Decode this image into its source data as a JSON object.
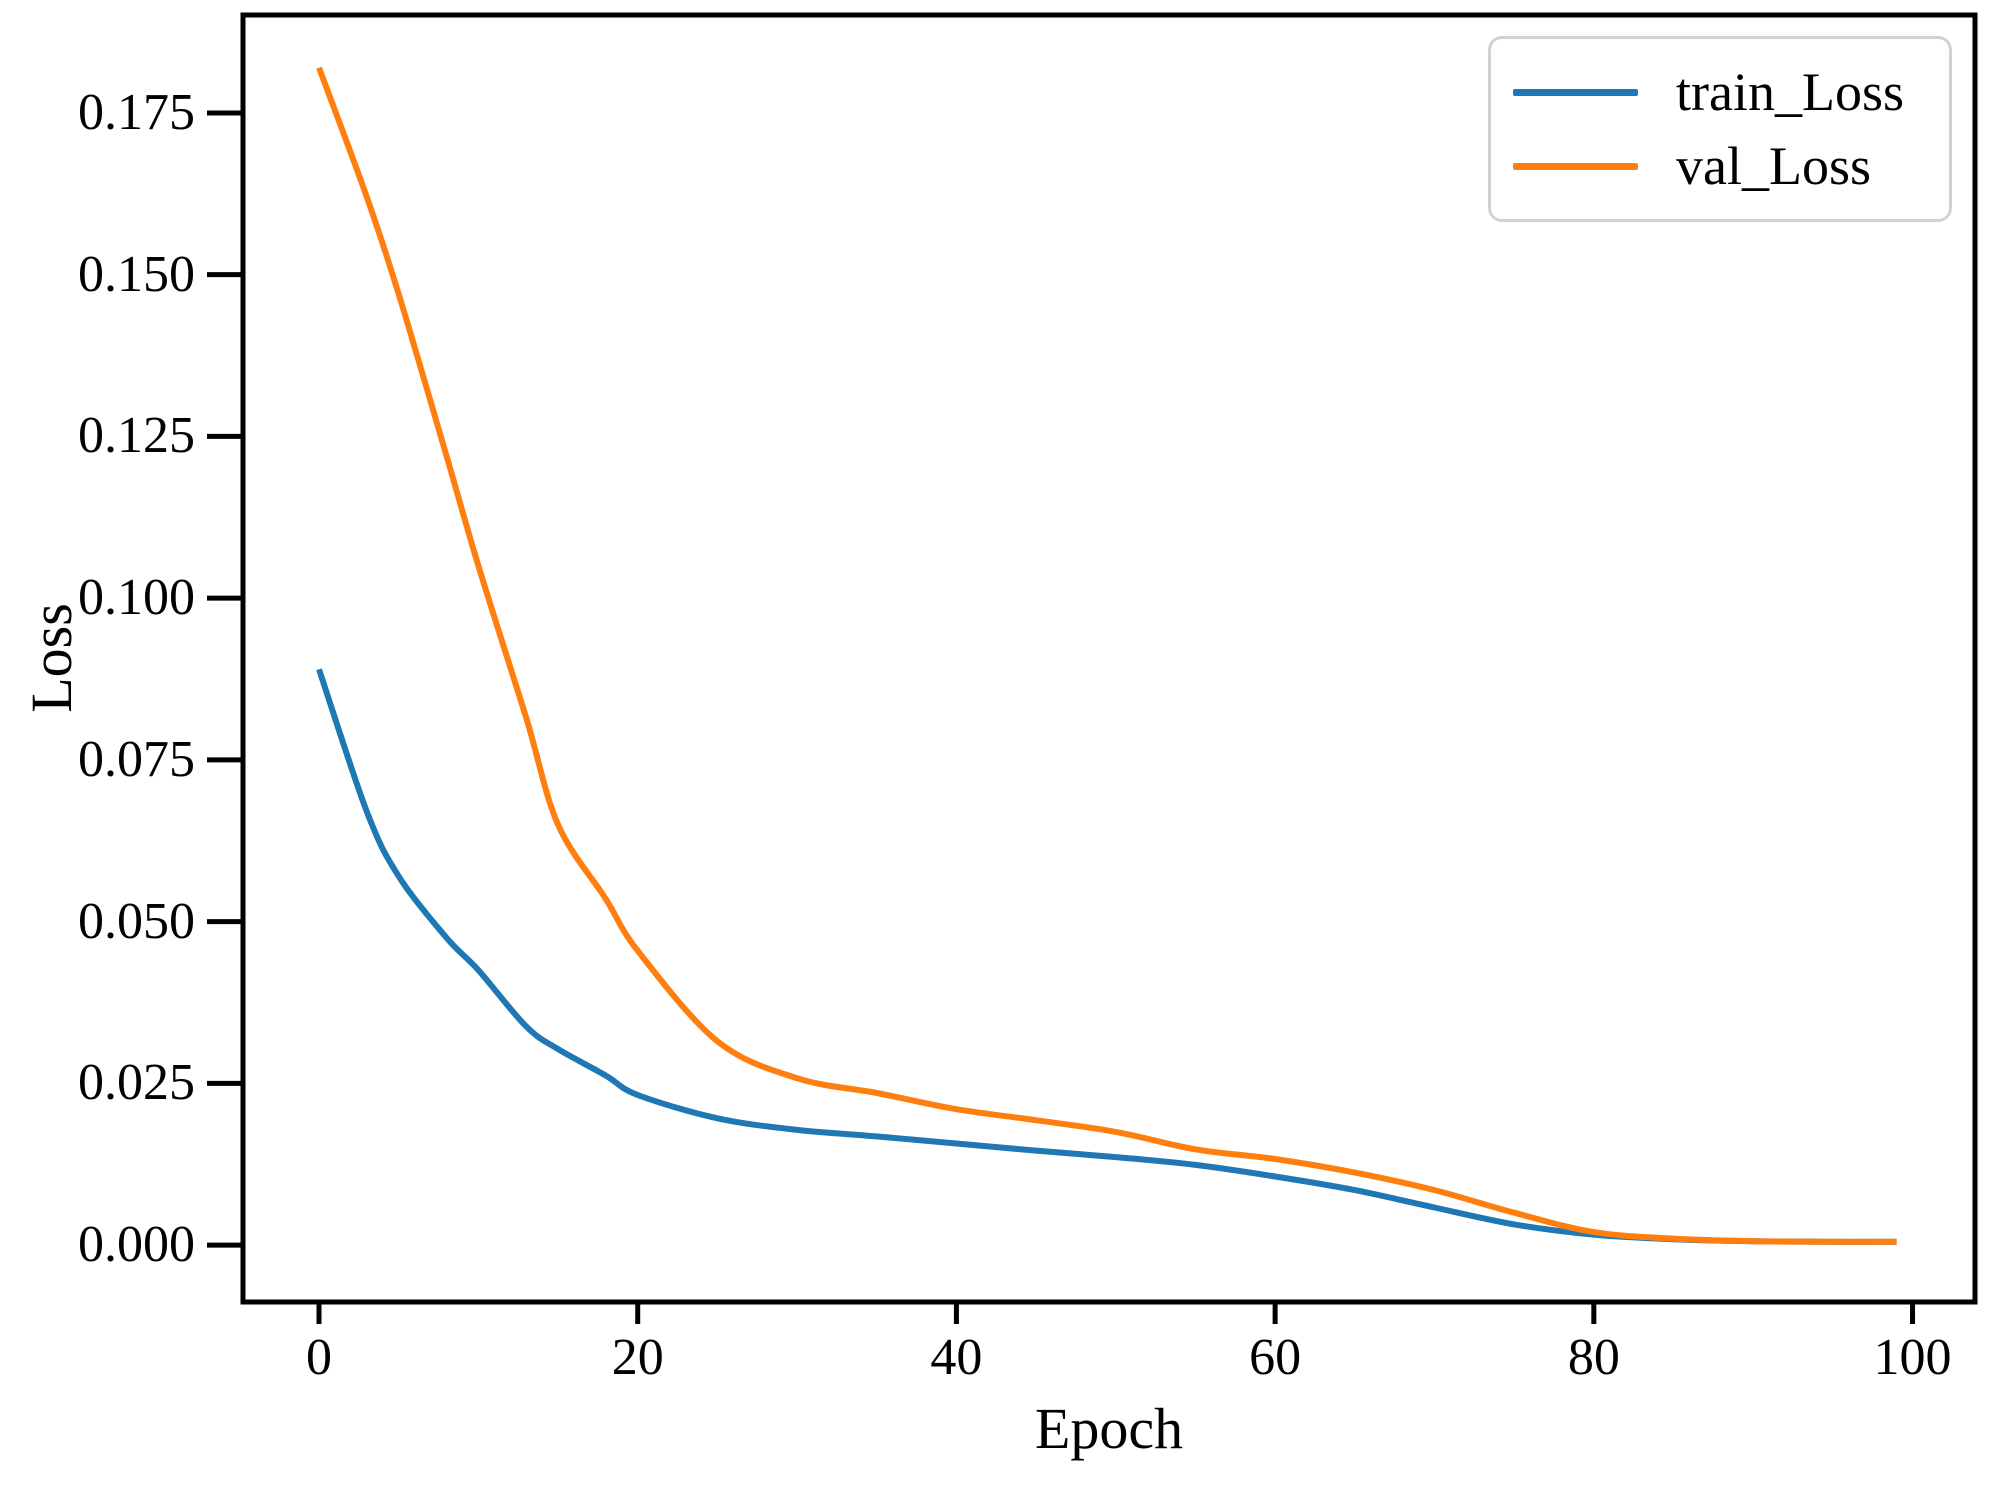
{
  "figure": {
    "background": "#ffffff",
    "spine_color": "#000000",
    "text_color": "#000000"
  },
  "chart_data": {
    "type": "line",
    "title": "",
    "xlabel": "Epoch",
    "ylabel": "Loss",
    "grid": false,
    "xlim": [
      -4.77,
      103.92
    ],
    "ylim": [
      -0.0088,
      0.19014
    ],
    "x_ticks": {
      "values": [
        0,
        20,
        40,
        60,
        80,
        100
      ],
      "labels": [
        "0",
        "20",
        "40",
        "60",
        "80",
        "100"
      ]
    },
    "y_ticks": {
      "values": [
        0.0,
        0.025,
        0.05,
        0.075,
        0.1,
        0.125,
        0.15,
        0.175
      ],
      "labels": [
        "0.000",
        "0.025",
        "0.050",
        "0.075",
        "0.100",
        "0.125",
        "0.150",
        "0.175"
      ]
    },
    "legend": {
      "position": "upper right"
    },
    "x": [
      0,
      3,
      5,
      8,
      10,
      13,
      15,
      18,
      20,
      25,
      30,
      35,
      40,
      45,
      50,
      55,
      60,
      65,
      70,
      75,
      80,
      85,
      90,
      95,
      99
    ],
    "series": [
      {
        "name": "train_Loss",
        "color": "#1f77b4",
        "values": [
          0.089,
          0.067,
          0.057,
          0.0475,
          0.0425,
          0.0338,
          0.0303,
          0.0262,
          0.0232,
          0.0196,
          0.0178,
          0.0168,
          0.0157,
          0.0146,
          0.0136,
          0.0124,
          0.0106,
          0.0085,
          0.0058,
          0.0032,
          0.0016,
          0.0009,
          0.0006,
          0.0005,
          0.0005
        ]
      },
      {
        "name": "val_Loss",
        "color": "#ff7f0e",
        "values": [
          0.182,
          0.162,
          0.147,
          0.122,
          0.105,
          0.0815,
          0.065,
          0.0535,
          0.0455,
          0.0315,
          0.0258,
          0.0235,
          0.021,
          0.0193,
          0.0175,
          0.0148,
          0.0133,
          0.0112,
          0.0085,
          0.005,
          0.002,
          0.001,
          0.0006,
          0.0005,
          0.0005
        ]
      }
    ]
  }
}
